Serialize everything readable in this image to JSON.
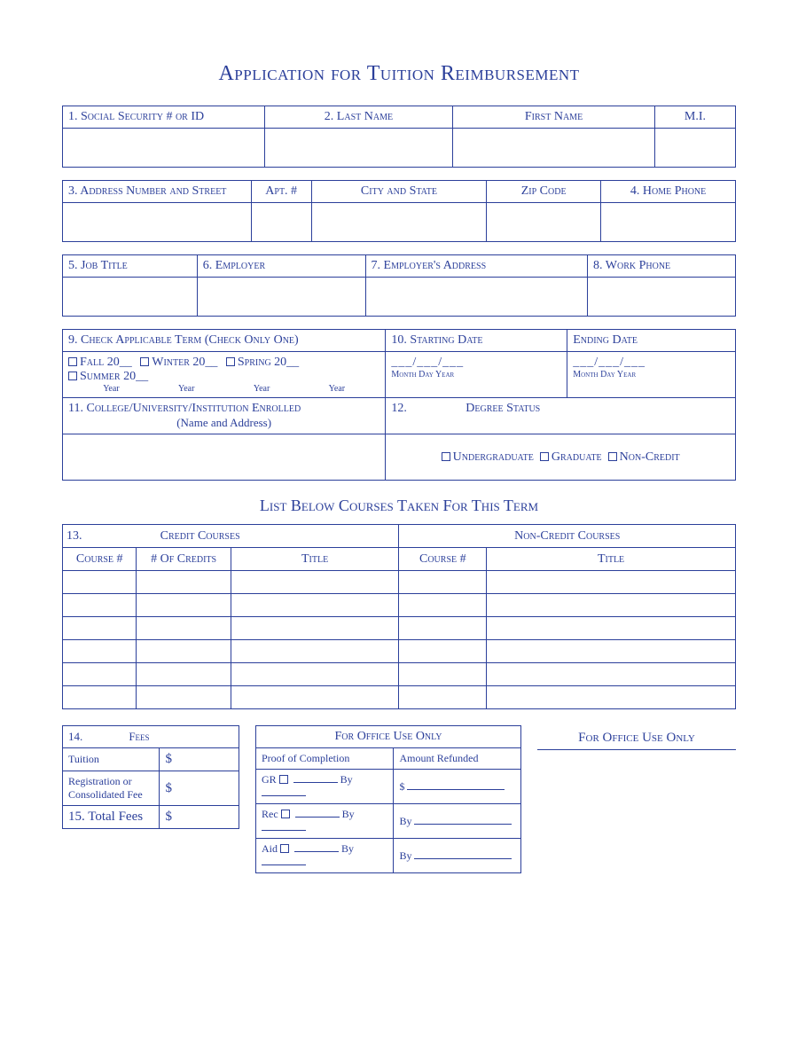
{
  "colors": {
    "primary": "#2b3f9a",
    "background": "#ffffff"
  },
  "title": "Application for Tuition Reimbursement",
  "section1": {
    "headers": [
      "1. Social Security # or ID",
      "2. Last Name",
      "First Name",
      "M.I."
    ]
  },
  "section3": {
    "headers": [
      "3. Address Number and Street",
      "Apt. #",
      "City and State",
      "Zip Code",
      "4. Home Phone"
    ]
  },
  "section5": {
    "headers": [
      "5. Job Title",
      "6. Employer",
      "7. Employer's Address",
      "8. Work Phone"
    ]
  },
  "section9": {
    "term_header": "9. Check Applicable Term (Check Only One)",
    "start_header": "10. Starting Date",
    "end_header": "Ending Date",
    "terms": [
      "Fall 20__",
      "Winter 20__",
      "Spring 20__",
      "Summer 20__"
    ],
    "year_label": "Year",
    "date_mask": "___/___/___",
    "date_labels": "Month Day Year",
    "col11": "11. College/University/Institution Enrolled",
    "col11_sub": "(Name and Address)",
    "col12": "12.",
    "degree_header": "Degree Status",
    "degree_options": [
      "Undergraduate",
      "Graduate",
      "Non-Credit"
    ]
  },
  "courses": {
    "subtitle": "List Below Courses Taken For This Term",
    "row13": "13.",
    "left_header": "Credit Courses",
    "right_header": "Non-Credit Courses",
    "cols_left": [
      "Course #",
      "# Of Credits",
      "Title"
    ],
    "cols_right": [
      "Course #",
      "Title"
    ],
    "blank_rows": 6
  },
  "fees": {
    "header14": "14.",
    "header_label": "Fees",
    "rows": [
      {
        "label": "Tuition",
        "value": "$"
      },
      {
        "label": "Registration or Consolidated Fee",
        "value": "$"
      }
    ],
    "total_label": "15. Total Fees",
    "total_value": "$"
  },
  "office": {
    "header": "For Office Use Only",
    "col1": "Proof of Completion",
    "col2": "Amount Refunded",
    "rows_left": [
      "GR",
      "Rec",
      "Aid"
    ],
    "by": "By",
    "dollar": "$",
    "right_label": "For Office Use Only"
  }
}
